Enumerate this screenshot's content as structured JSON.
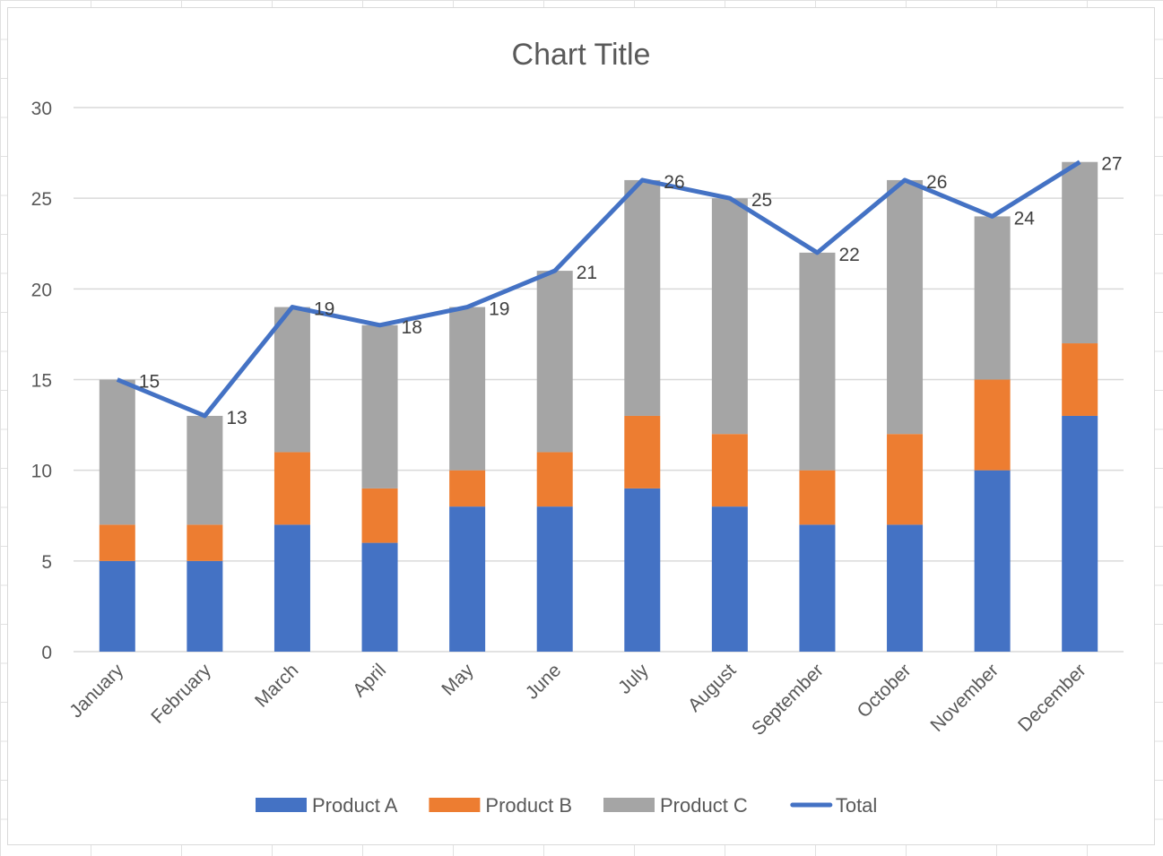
{
  "chart_data": {
    "type": "bar",
    "subtype": "stacked-column-with-line",
    "title": "Chart Title",
    "categories": [
      "January",
      "February",
      "March",
      "April",
      "May",
      "June",
      "July",
      "August",
      "September",
      "October",
      "November",
      "December"
    ],
    "series": [
      {
        "name": "Product A",
        "type": "bar",
        "color": "#4472c4",
        "values": [
          5,
          5,
          7,
          6,
          8,
          8,
          9,
          8,
          7,
          7,
          10,
          13
        ]
      },
      {
        "name": "Product B",
        "type": "bar",
        "color": "#ed7d31",
        "values": [
          2,
          2,
          4,
          3,
          2,
          3,
          4,
          4,
          3,
          5,
          5,
          4
        ]
      },
      {
        "name": "Product C",
        "type": "bar",
        "color": "#a5a5a5",
        "values": [
          8,
          6,
          8,
          9,
          9,
          10,
          13,
          13,
          12,
          14,
          9,
          10
        ]
      },
      {
        "name": "Total",
        "type": "line",
        "color": "#4472c4",
        "values": [
          15,
          13,
          19,
          18,
          19,
          21,
          26,
          25,
          22,
          26,
          24,
          27
        ],
        "data_labels": true
      }
    ],
    "ylim": [
      0,
      30
    ],
    "yticks": [
      0,
      5,
      10,
      15,
      20,
      25,
      30
    ],
    "grid": true,
    "legend": "bottom",
    "xlabel": "",
    "ylabel": ""
  }
}
